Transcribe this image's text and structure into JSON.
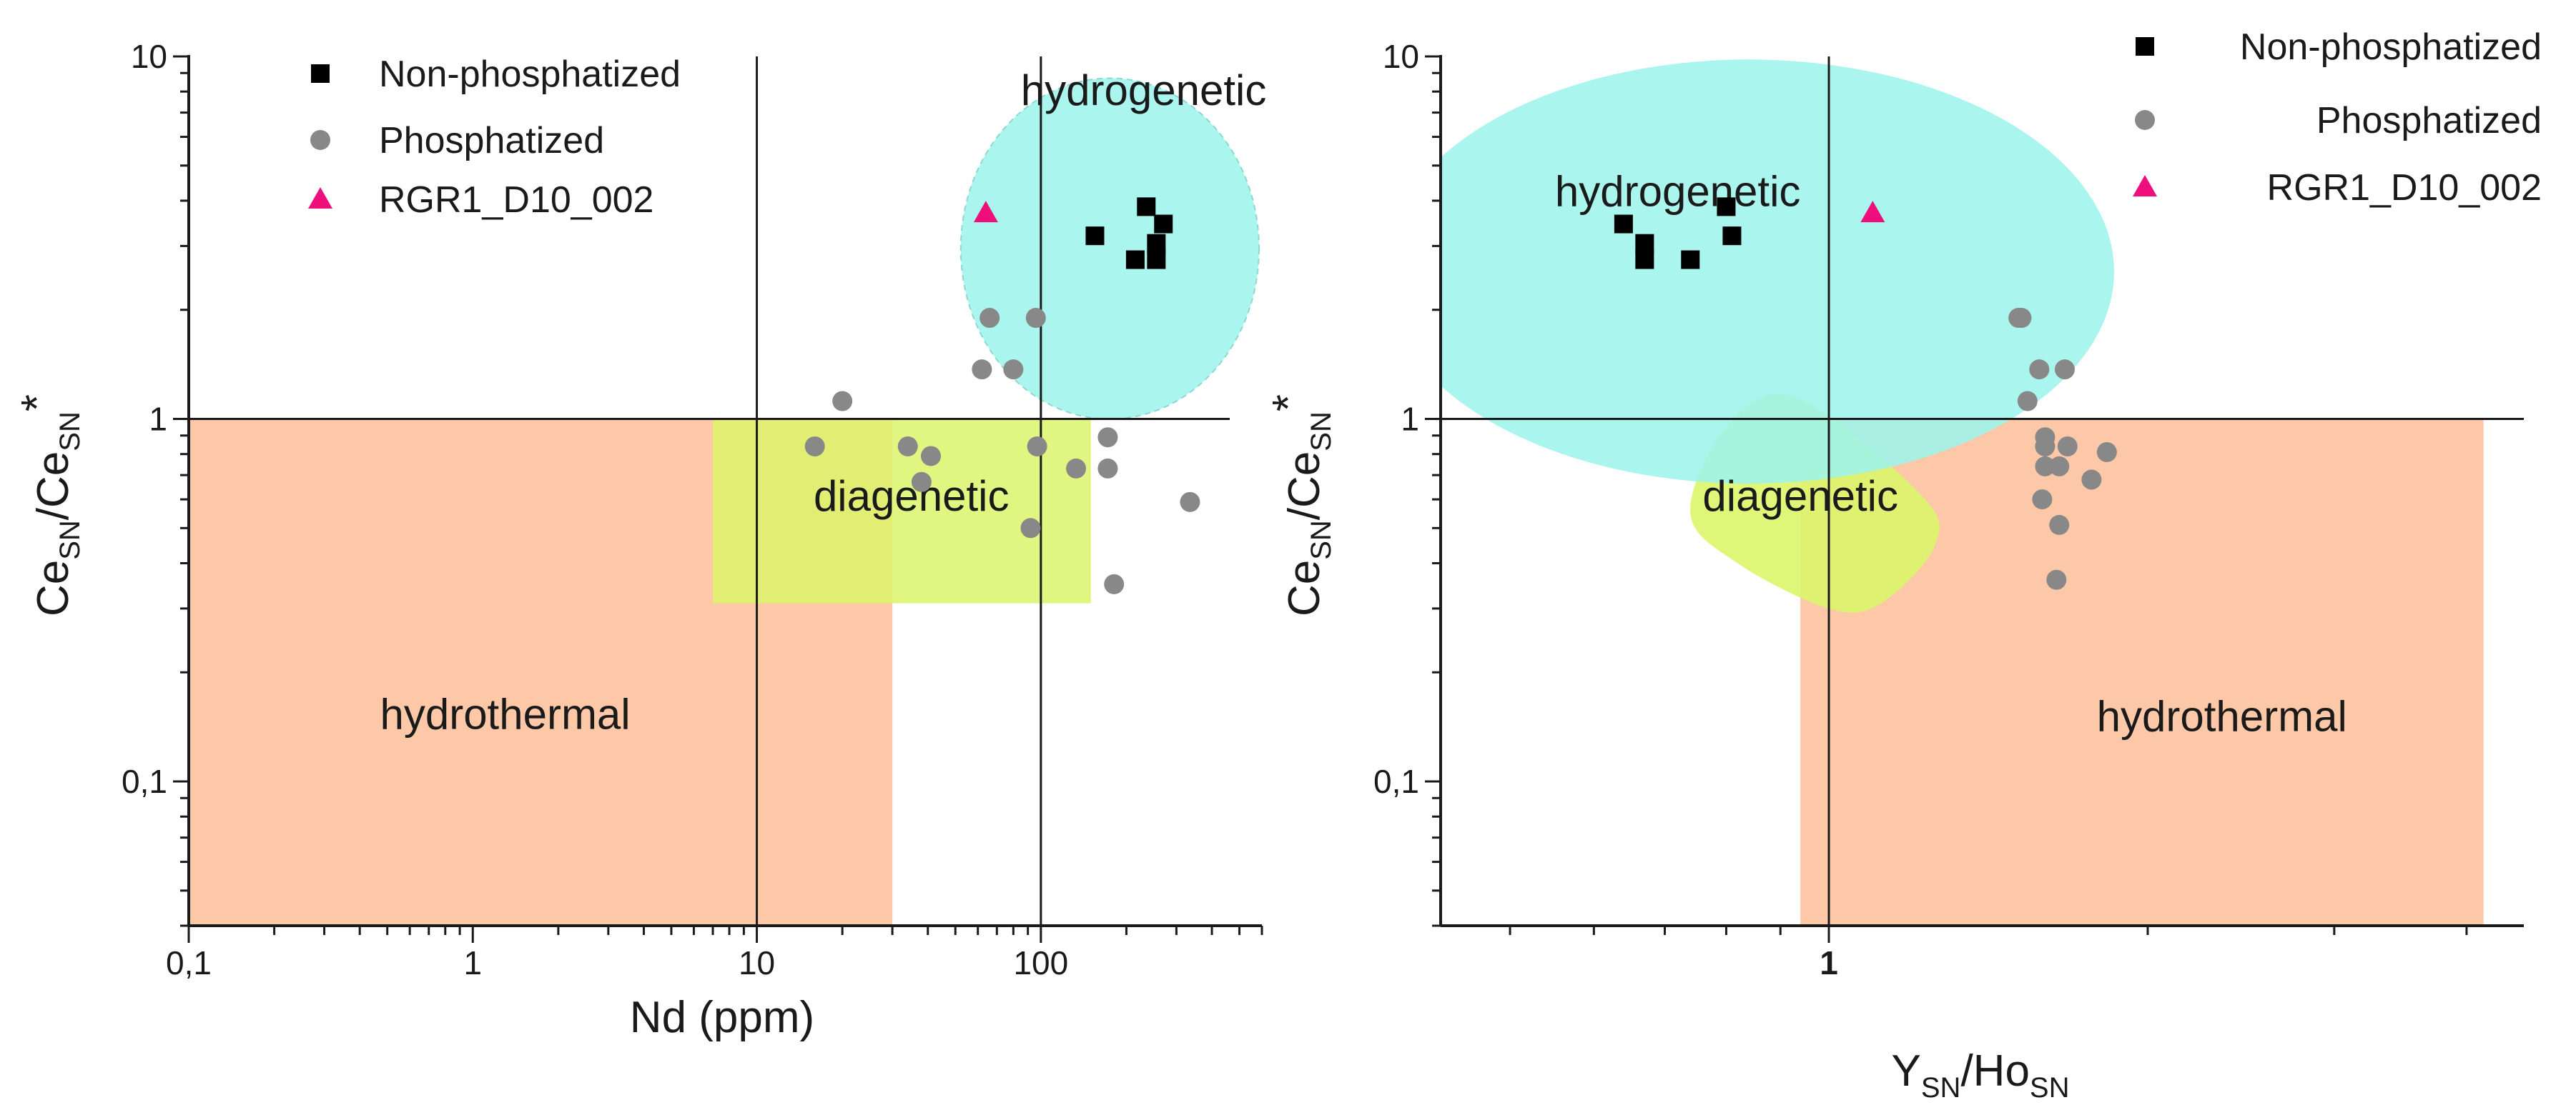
{
  "chart_data": [
    {
      "type": "scatter",
      "panel": "left",
      "xscale": "log",
      "yscale": "log",
      "xlim": [
        0.1,
        600
      ],
      "ylim": [
        0.04,
        10
      ],
      "xlabel": "Nd (ppm)",
      "ylabel": {
        "main": "Ce",
        "sub": "SN",
        "mid": "/Ce",
        "sub2": "SN",
        "sup": "*"
      },
      "xticks": [
        {
          "value": 0.1,
          "label": "0,1"
        },
        {
          "value": 1,
          "label": "1"
        },
        {
          "value": 10,
          "label": "10"
        },
        {
          "value": 100,
          "label": "100"
        }
      ],
      "yticks": [
        {
          "value": 0.1,
          "label": "0,1"
        },
        {
          "value": 1,
          "label": "1"
        },
        {
          "value": 10,
          "label": "10"
        }
      ],
      "reference_lines": {
        "x": [
          10,
          100
        ],
        "y": [
          1
        ]
      },
      "regions": [
        {
          "name": "hydrothermal",
          "label": "hydrothermal",
          "shape": "rect",
          "x": [
            0.1,
            30
          ],
          "y": [
            0.04,
            1
          ],
          "color": "#fcc8a8",
          "label_at": [
            1.3,
            0.15
          ]
        },
        {
          "name": "diagenetic",
          "label": "diagenetic",
          "shape": "rect",
          "x": [
            7,
            150
          ],
          "y": [
            0.31,
            1
          ],
          "color": "#dcf56a",
          "label_at": [
            35,
            0.6
          ]
        },
        {
          "name": "hydrogenetic",
          "label": "hydrogenetic",
          "shape": "ellipse",
          "cx": 175,
          "cy": 2.95,
          "rx_decades": 0.525,
          "ry_decades": 0.47,
          "color": "#9ef4ea",
          "label_at": [
            230,
            7.9
          ]
        }
      ],
      "series": [
        {
          "name": "Non-phosphatized",
          "marker": "square",
          "color": "#000000",
          "points": [
            [
              235,
              3.85
            ],
            [
              270,
              3.45
            ],
            [
              155,
              3.2
            ],
            [
              255,
              3.05
            ],
            [
              215,
              2.75
            ],
            [
              255,
              2.75
            ]
          ]
        },
        {
          "name": "Phosphatized",
          "marker": "circle",
          "color": "#888888",
          "points": [
            [
              66,
              1.9
            ],
            [
              96,
              1.9
            ],
            [
              20,
              1.12
            ],
            [
              62,
              1.37
            ],
            [
              80,
              1.37
            ],
            [
              16,
              0.84
            ],
            [
              34,
              0.84
            ],
            [
              41,
              0.79
            ],
            [
              38,
              0.67
            ],
            [
              97,
              0.84
            ],
            [
              172,
              0.89
            ],
            [
              172,
              0.73
            ],
            [
              133,
              0.73
            ],
            [
              92,
              0.5
            ],
            [
              335,
              0.59
            ],
            [
              181,
              0.35
            ]
          ]
        },
        {
          "name": "RGR1_D10_002",
          "marker": "triangle",
          "color": "#ef0f7c",
          "points": [
            [
              64,
              3.7
            ]
          ]
        }
      ],
      "legend": {
        "position": "top-left"
      }
    },
    {
      "type": "scatter",
      "panel": "right",
      "xscale": "log",
      "yscale": "log",
      "xlim": [
        0.43,
        4.53
      ],
      "ylim": [
        0.04,
        10
      ],
      "xlabel": {
        "main": "Y",
        "sub": "SN",
        "mid": "/Ho",
        "sub2": "SN"
      },
      "ylabel": {
        "main": "Ce",
        "sub": "SN",
        "mid": "/Ce",
        "sub2": "SN",
        "sup": "*"
      },
      "xticks": [
        {
          "value": 1,
          "label": "1"
        }
      ],
      "xminor": [
        0.5,
        0.6,
        0.7,
        0.8,
        0.9,
        2,
        3,
        4
      ],
      "yticks": [
        {
          "value": 0.1,
          "label": "0,1"
        },
        {
          "value": 1,
          "label": "1"
        },
        {
          "value": 10,
          "label": "10"
        }
      ],
      "reference_lines": {
        "x": [
          1
        ],
        "y": [
          1
        ]
      },
      "regions": [
        {
          "name": "hydrothermal",
          "label": "hydrothermal",
          "shape": "rect",
          "x": [
            0.94,
            4.15
          ],
          "y": [
            0.04,
            1
          ],
          "color": "#fcc8a8",
          "label_at": [
            2.35,
            0.148
          ]
        },
        {
          "name": "diagenetic",
          "label": "diagenetic",
          "shape": "blob",
          "color": "#dcf56a",
          "label_at": [
            0.94,
            0.6
          ]
        },
        {
          "name": "hydrogenetic",
          "label": "hydrogenetic",
          "shape": "ellipse",
          "cx": 0.84,
          "cy": 2.55,
          "rx_decades": 0.345,
          "ry_decades": 0.585,
          "color": "#9ef4ea",
          "label_at": [
            0.72,
            4.15
          ]
        }
      ],
      "series": [
        {
          "name": "Non-phosphatized",
          "marker": "square",
          "color": "#000000",
          "points": [
            [
              0.8,
              3.85
            ],
            [
              0.64,
              3.45
            ],
            [
              0.81,
              3.2
            ],
            [
              0.67,
              3.05
            ],
            [
              0.67,
              2.75
            ],
            [
              0.74,
              2.75
            ]
          ]
        },
        {
          "name": "Phosphatized",
          "marker": "circle",
          "color": "#888888",
          "points": [
            [
              1.51,
              1.9
            ],
            [
              1.52,
              1.9
            ],
            [
              1.58,
              1.37
            ],
            [
              1.67,
              1.37
            ],
            [
              1.54,
              1.12
            ],
            [
              1.6,
              0.89
            ],
            [
              1.6,
              0.84
            ],
            [
              1.68,
              0.84
            ],
            [
              1.83,
              0.81
            ],
            [
              1.6,
              0.74
            ],
            [
              1.65,
              0.74
            ],
            [
              1.77,
              0.68
            ],
            [
              1.59,
              0.6
            ],
            [
              1.65,
              0.51
            ],
            [
              1.64,
              0.36
            ]
          ]
        },
        {
          "name": "RGR1_D10_002",
          "marker": "triangle",
          "color": "#ef0f7c",
          "points": [
            [
              1.1,
              3.7
            ]
          ]
        }
      ],
      "legend": {
        "position": "top-right"
      }
    }
  ]
}
